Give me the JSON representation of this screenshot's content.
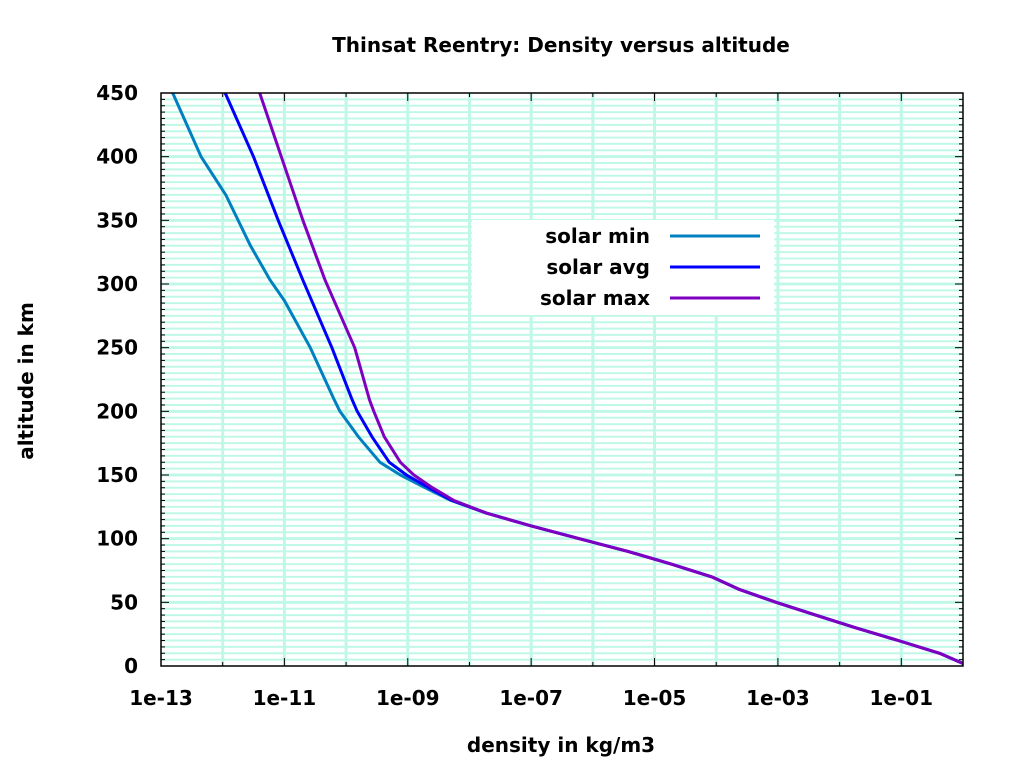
{
  "chart_data": {
    "type": "line",
    "title": "Thinsat Reentry: Density versus altitude",
    "xlabel": "density in kg/m3",
    "ylabel": "altitude in km",
    "xscale": "log",
    "xlim": [
      1e-13,
      1
    ],
    "ylim": [
      0,
      450
    ],
    "x_ticks": [
      1e-13,
      1e-11,
      1e-09,
      1e-07,
      1e-05,
      0.001,
      0.1
    ],
    "x_tick_labels": [
      "1e-13",
      "1e-11",
      "1e-09",
      "1e-07",
      "1e-05",
      "1e-03",
      "1e-01"
    ],
    "y_ticks": [
      0,
      50,
      100,
      150,
      200,
      250,
      300,
      350,
      400,
      450
    ],
    "y_tick_labels": [
      "0",
      "50",
      "100",
      "150",
      "200",
      "250",
      "300",
      "350",
      "400",
      "450"
    ],
    "grid": true,
    "grid_color": "#c0f8e8",
    "legend_position": "upper-center",
    "series": [
      {
        "name": "solar min",
        "color": "#0080c0",
        "altitude": [
          0,
          10,
          20,
          30,
          40,
          50,
          60,
          70,
          80,
          90,
          100,
          110,
          120,
          130,
          140,
          150,
          160,
          180,
          200,
          210,
          250,
          287,
          303,
          330,
          370,
          400,
          450
        ],
        "log10_density": [
          0.09,
          -0.38,
          -1.05,
          -1.74,
          -2.39,
          -3.03,
          -3.62,
          -4.07,
          -4.73,
          -5.43,
          -6.22,
          -7.0,
          -7.72,
          -8.3,
          -8.72,
          -9.12,
          -9.45,
          -9.8,
          -10.1,
          -10.2,
          -10.58,
          -11.0,
          -11.23,
          -11.55,
          -11.95,
          -12.35,
          -12.81
        ]
      },
      {
        "name": "solar avg",
        "color": "#0000ff",
        "altitude": [
          0,
          10,
          20,
          30,
          40,
          50,
          60,
          70,
          80,
          90,
          100,
          110,
          120,
          130,
          140,
          150,
          160,
          180,
          200,
          209,
          250,
          303,
          350,
          400,
          450
        ],
        "log10_density": [
          0.09,
          -0.38,
          -1.05,
          -1.74,
          -2.39,
          -3.03,
          -3.62,
          -4.07,
          -4.73,
          -5.43,
          -6.22,
          -7.0,
          -7.72,
          -8.28,
          -8.66,
          -9.02,
          -9.3,
          -9.58,
          -9.82,
          -9.9,
          -10.23,
          -10.7,
          -11.1,
          -11.5,
          -11.96
        ]
      },
      {
        "name": "solar max",
        "color": "#8000c0",
        "altitude": [
          0,
          10,
          20,
          30,
          40,
          50,
          60,
          70,
          80,
          90,
          100,
          110,
          120,
          130,
          140,
          150,
          160,
          180,
          200,
          209,
          250,
          303,
          350,
          400,
          450
        ],
        "log10_density": [
          0.09,
          -0.38,
          -1.05,
          -1.74,
          -2.39,
          -3.03,
          -3.62,
          -4.07,
          -4.73,
          -5.43,
          -6.22,
          -7.0,
          -7.72,
          -8.25,
          -8.6,
          -8.9,
          -9.12,
          -9.38,
          -9.55,
          -9.62,
          -9.86,
          -10.34,
          -10.7,
          -11.05,
          -11.4
        ]
      }
    ]
  }
}
